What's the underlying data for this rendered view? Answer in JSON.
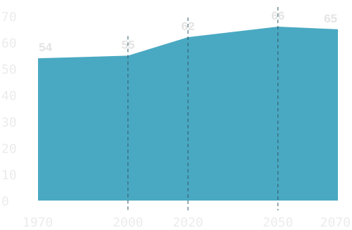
{
  "chart_data": {
    "type": "area",
    "title": "",
    "xlabel": "",
    "ylabel": "",
    "x": [
      1970,
      2000,
      2020,
      2050,
      2070
    ],
    "series": [
      {
        "values": [
          54,
          55,
          62,
          66,
          65
        ],
        "labels": [
          "54",
          "55",
          "62",
          "66",
          "65"
        ],
        "color": "#4aa9c2"
      }
    ],
    "x_tick_labels": [
      "1970",
      "2000",
      "2020",
      "2050",
      "2070"
    ],
    "y_tick_labels": [
      "0",
      "10",
      "20",
      "30",
      "40",
      "50",
      "60",
      "70"
    ],
    "y_ticks": [
      0,
      10,
      20,
      30,
      40,
      50,
      60,
      70
    ],
    "ylim": [
      0,
      70
    ],
    "xlim": [
      1970,
      2070
    ],
    "vertical_guides_at": [
      2000,
      2020,
      2050
    ],
    "guide_color": "#2f5566",
    "tick_color": "#ececec",
    "label_color": "#e4e4e4",
    "grid": false,
    "legend": "none"
  }
}
